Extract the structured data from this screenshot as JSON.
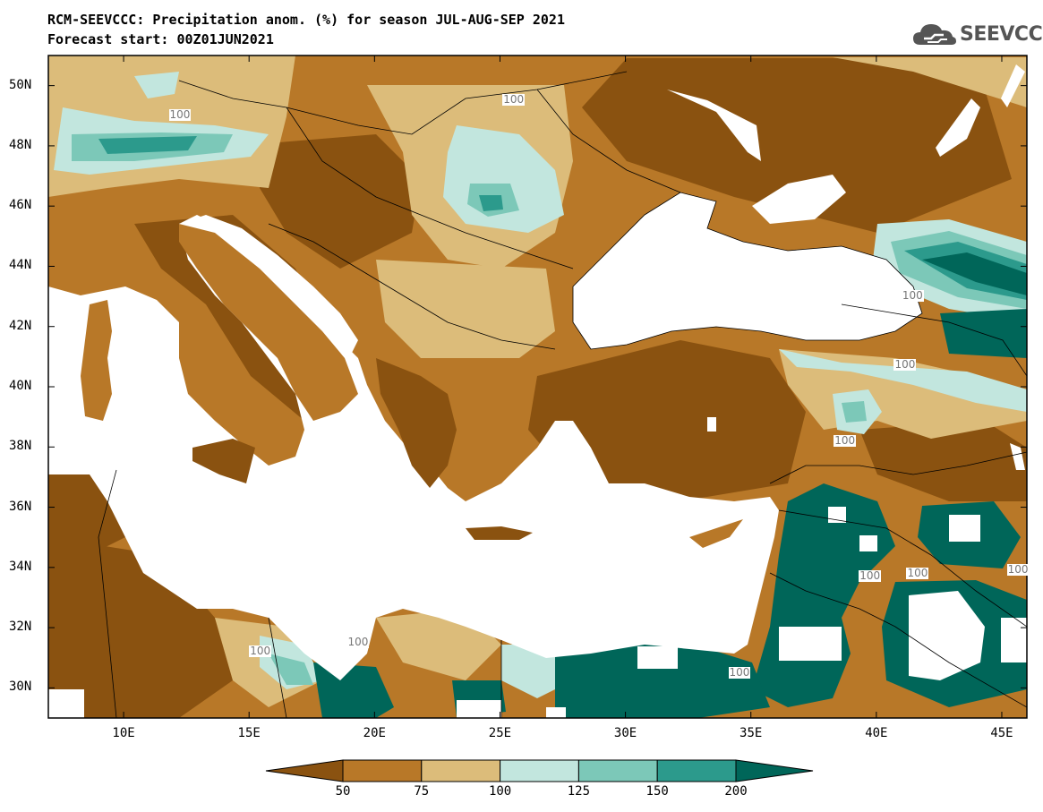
{
  "title": {
    "line1": "RCM-SEEVCCC: Precipitation anom. (%) for season JUL-AUG-SEP 2021",
    "line2": "Forecast start: 00Z01JUN2021"
  },
  "logo": {
    "text": "SEEVCCC",
    "icon": "cloud-icon"
  },
  "map": {
    "lon_range": [
      7,
      46
    ],
    "lat_range": [
      29,
      51
    ],
    "lat_ticks": [
      "50N",
      "48N",
      "46N",
      "44N",
      "42N",
      "40N",
      "38N",
      "36N",
      "34N",
      "32N",
      "30N"
    ],
    "lon_ticks": [
      "10E",
      "15E",
      "20E",
      "25E",
      "30E",
      "35E",
      "40E",
      "45E"
    ],
    "contour_labels": [
      "100",
      "100",
      "100",
      "100",
      "100",
      "100",
      "100",
      "100",
      "100",
      "100",
      "100"
    ]
  },
  "colorbar": {
    "colors": [
      "#8a5210",
      "#b87828",
      "#dcbc7a",
      "#c2e6de",
      "#7cc8b8",
      "#2c9a8c",
      "#006659"
    ],
    "labels": [
      "50",
      "75",
      "100",
      "125",
      "150",
      "200"
    ]
  }
}
